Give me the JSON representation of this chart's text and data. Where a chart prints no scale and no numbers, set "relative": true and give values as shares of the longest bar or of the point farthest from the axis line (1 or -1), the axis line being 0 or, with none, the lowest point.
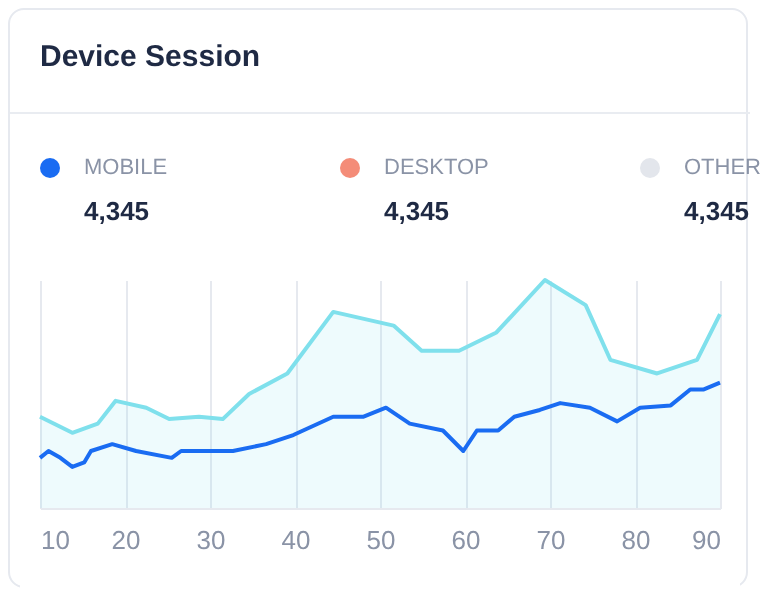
{
  "chart_data": {
    "type": "line",
    "title": "Device Session",
    "relative": true,
    "xlim": [
      10,
      90
    ],
    "xticks": [
      10,
      20,
      30,
      40,
      50,
      60,
      70,
      80,
      90
    ],
    "grid": "x",
    "legend": "top left",
    "marker": "none",
    "line_style": "solid",
    "annotations": [
      "4,345",
      "4,345",
      "4,345"
    ],
    "series": [
      {
        "name": "MOBILE",
        "color": "#1a6cf2",
        "x": [
          10,
          11,
          12.4,
          13.8,
          15.2,
          16,
          18.5,
          21.3,
          25.5,
          26.6,
          32.7,
          36.6,
          39.8,
          44.5,
          48,
          50.7,
          53.5,
          57.4,
          59.8,
          61.4,
          63.9,
          65.8,
          68.8,
          71.2,
          74.7,
          77.9,
          80.6,
          84.2,
          86.5,
          88.1,
          90
        ],
        "values": [
          0.22,
          0.25,
          0.22,
          0.18,
          0.2,
          0.25,
          0.28,
          0.25,
          0.22,
          0.25,
          0.25,
          0.28,
          0.32,
          0.4,
          0.4,
          0.44,
          0.37,
          0.34,
          0.25,
          0.34,
          0.34,
          0.4,
          0.43,
          0.46,
          0.44,
          0.38,
          0.44,
          0.45,
          0.52,
          0.52,
          0.55
        ]
      },
      {
        "color": "#7fe0ec",
        "type": "area",
        "x": [
          10,
          13.8,
          16.8,
          18.9,
          22.5,
          25.2,
          28.7,
          31.5,
          34.6,
          39.1,
          44.5,
          51.6,
          54.9,
          59.3,
          63.7,
          69.4,
          74.2,
          77.1,
          82.6,
          87.3,
          90
        ],
        "values": [
          0.4,
          0.33,
          0.37,
          0.47,
          0.44,
          0.39,
          0.4,
          0.39,
          0.5,
          0.59,
          0.86,
          0.8,
          0.69,
          0.69,
          0.77,
          1,
          0.89,
          0.65,
          0.59,
          0.65,
          0.85
        ]
      },
      {
        "name": "DESKTOP",
        "color": "#f48c78"
      },
      {
        "name": "OTHER",
        "color": "#e3e6ec"
      }
    ]
  }
}
